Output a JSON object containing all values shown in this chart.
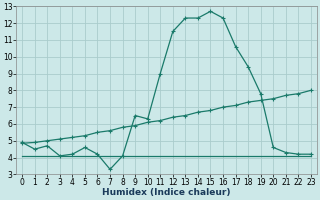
{
  "xlabel": "Humidex (Indice chaleur)",
  "ylabel": "",
  "bg_color": "#cce8e8",
  "grid_color": "#aacccc",
  "line_color": "#1a7a6a",
  "xlim": [
    -0.5,
    23.5
  ],
  "ylim": [
    3,
    13
  ],
  "yticks": [
    3,
    4,
    5,
    6,
    7,
    8,
    9,
    10,
    11,
    12,
    13
  ],
  "xticks": [
    0,
    1,
    2,
    3,
    4,
    5,
    6,
    7,
    8,
    9,
    10,
    11,
    12,
    13,
    14,
    15,
    16,
    17,
    18,
    19,
    20,
    21,
    22,
    23
  ],
  "line1_x": [
    0,
    1,
    2,
    3,
    4,
    5,
    6,
    7,
    8,
    9,
    10,
    11,
    12,
    13,
    14,
    15,
    16,
    17,
    18,
    19,
    20,
    21,
    22,
    23
  ],
  "line1_y": [
    4.9,
    4.5,
    4.7,
    4.1,
    4.2,
    4.6,
    4.2,
    3.3,
    4.1,
    6.5,
    6.3,
    9.0,
    11.5,
    12.3,
    12.3,
    12.7,
    12.3,
    10.6,
    9.4,
    7.8,
    4.6,
    4.3,
    4.2,
    4.2
  ],
  "line2_x": [
    0,
    1,
    2,
    3,
    4,
    5,
    6,
    7,
    8,
    9,
    10,
    11,
    12,
    13,
    14,
    15,
    16,
    17,
    18,
    19,
    20,
    21,
    22,
    23
  ],
  "line2_y": [
    4.85,
    4.9,
    5.0,
    5.1,
    5.2,
    5.3,
    5.5,
    5.6,
    5.8,
    5.9,
    6.1,
    6.2,
    6.4,
    6.5,
    6.7,
    6.8,
    7.0,
    7.1,
    7.3,
    7.4,
    7.5,
    7.7,
    7.8,
    8.0
  ],
  "line3_x": [
    0,
    23
  ],
  "line3_y": [
    4.1,
    4.1
  ],
  "xlabel_fontsize": 6.5,
  "xlabel_color": "#1a3a5a",
  "tick_fontsize": 5.5
}
